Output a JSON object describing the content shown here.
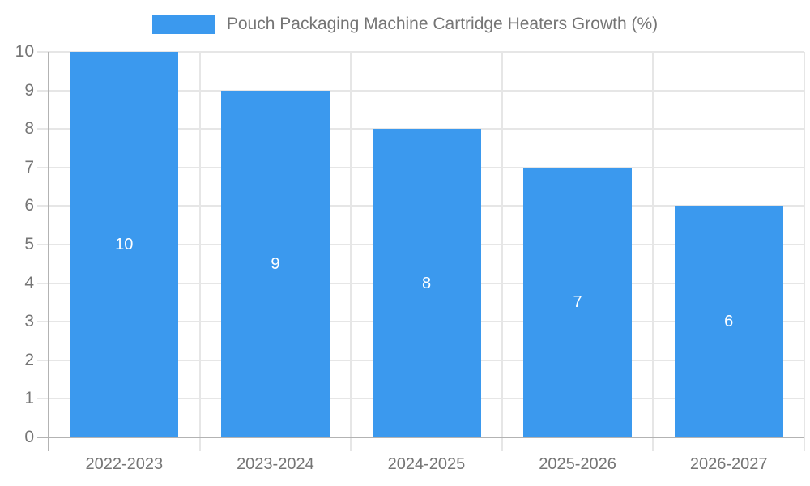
{
  "chart_data": {
    "type": "bar",
    "title": "Pouch Packaging Machine Cartridge Heaters Growth (%)",
    "legend_position": "top",
    "categories": [
      "2022-2023",
      "2023-2024",
      "2024-2025",
      "2025-2026",
      "2026-2027"
    ],
    "series": [
      {
        "name": "Pouch Packaging Machine Cartridge Heaters Growth (%)",
        "values": [
          10,
          9,
          8,
          7,
          6
        ]
      }
    ],
    "bar_value_labels": [
      "10",
      "9",
      "8",
      "7",
      "6"
    ],
    "xlabel": "",
    "ylabel": "",
    "ylim": [
      0,
      10
    ],
    "yticks": [
      0,
      1,
      2,
      3,
      4,
      5,
      6,
      7,
      8,
      9,
      10
    ],
    "grid": "on",
    "colors": {
      "bar": "#3B99EE",
      "gridline": "#E6E6E6",
      "axis_line": "#B3B3B3",
      "tick_label": "#757575",
      "legend_text": "#757575",
      "bar_value_text": "#FFFFFF",
      "background": "#FFFFFF"
    }
  }
}
